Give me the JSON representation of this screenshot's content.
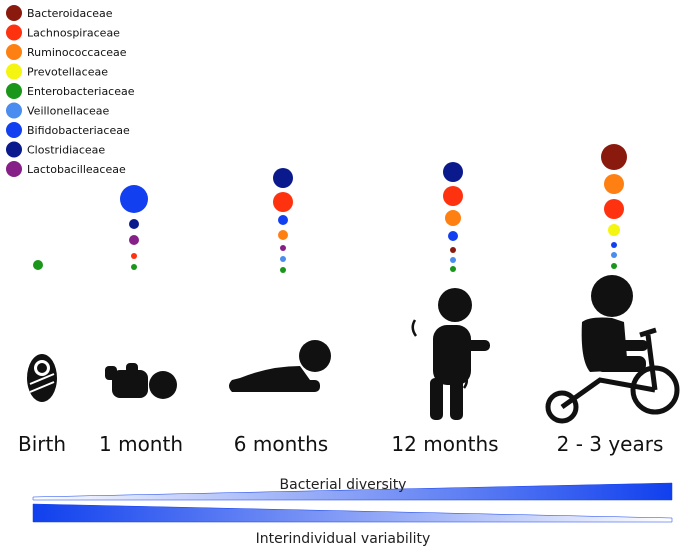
{
  "legend": [
    {
      "label": "Bacteroidaceae",
      "color": "#8b1a0e"
    },
    {
      "label": "Lachnospiraceae",
      "color": "#ff3210"
    },
    {
      "label": "Ruminococcaceae",
      "color": "#ff8012"
    },
    {
      "label": "Prevotellaceae",
      "color": "#f5f512"
    },
    {
      "label": "Enterobacteriaceae",
      "color": "#1a961a"
    },
    {
      "label": "Veillonellaceae",
      "color": "#4a8cf0"
    },
    {
      "label": "Bifidobacteriaceae",
      "color": "#1240f0"
    },
    {
      "label": "Clostridiaceae",
      "color": "#0a1a8c"
    },
    {
      "label": "Lactobacilleaceae",
      "color": "#862088"
    }
  ],
  "stages": [
    "Birth",
    "1 month",
    "6 months",
    "12 months",
    "2 - 3 years"
  ],
  "bars": {
    "top": "Bacterial diversity",
    "bottom": "Interindividual variability"
  }
}
